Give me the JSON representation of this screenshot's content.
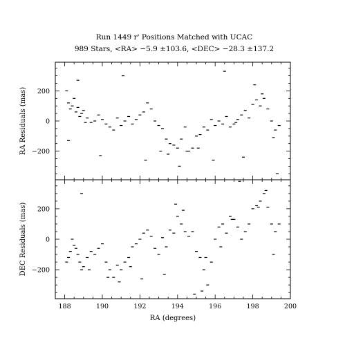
{
  "chart_data": {
    "type": "scatter",
    "title": "Run 1449 r' Positions Matched with UCAC",
    "subtitle": "989 Stars, <RA>  −5.9 ±103.6, <DEC> −28.3 ±137.2",
    "xlabel": "RA (degrees)",
    "xlim": [
      187.5,
      200.0
    ],
    "x_ticks": [
      "188",
      "190",
      "192",
      "194",
      "196",
      "198",
      "200"
    ],
    "grid": false,
    "panels": [
      {
        "ylabel": "RA Residuals (mas)",
        "ylim": [
          -390,
          390
        ],
        "y_ticks": [
          "−200",
          "0",
          "200"
        ],
        "series": [
          {
            "x": [
              188.1,
              188.2,
              188.3,
              188.4,
              188.5,
              188.6,
              188.7,
              188.8,
              188.9,
              189.0,
              189.2,
              189.4,
              189.6,
              189.8,
              190.0,
              190.2,
              190.4,
              190.6,
              190.8,
              191.0,
              191.2,
              191.4,
              191.6,
              191.8,
              192.0,
              192.2,
              192.4,
              192.6,
              192.8,
              193.0,
              193.2,
              193.4,
              193.6,
              193.8,
              194.0,
              194.2,
              194.4,
              194.6,
              194.8,
              195.0,
              195.2,
              195.4,
              195.6,
              195.8,
              196.0,
              196.2,
              196.4,
              196.6,
              196.8,
              197.0,
              197.2,
              197.4,
              197.6,
              197.8,
              198.0,
              198.2,
              198.4,
              198.6,
              198.8,
              199.0,
              199.2,
              199.4,
              188.2,
              188.7,
              189.1,
              189.9,
              191.1,
              192.3,
              193.1,
              193.5,
              194.1,
              194.5,
              195.1,
              195.9,
              196.5,
              197.1,
              197.5,
              198.1,
              198.5,
              199.1,
              199.3
            ],
            "y": [
              200,
              120,
              80,
              100,
              150,
              60,
              90,
              30,
              50,
              70,
              20,
              -10,
              0,
              40,
              10,
              -20,
              -40,
              -60,
              20,
              -30,
              0,
              30,
              -20,
              10,
              40,
              60,
              120,
              80,
              0,
              -30,
              -50,
              -120,
              -150,
              -160,
              -180,
              -120,
              -40,
              -200,
              -180,
              -100,
              -90,
              -40,
              -60,
              10,
              -30,
              0,
              -20,
              30,
              -40,
              -20,
              10,
              40,
              70,
              20,
              110,
              140,
              100,
              150,
              80,
              0,
              -60,
              -30,
              -130,
              270,
              -10,
              -230,
              300,
              -260,
              -200,
              -220,
              -300,
              -200,
              -180,
              -260,
              330,
              -10,
              -240,
              240,
              180,
              -110,
              -350
            ]
          }
        ]
      },
      {
        "ylabel": "DEC Residuals (mas)",
        "ylim": [
          -390,
          390
        ],
        "y_ticks": [
          "−200",
          "0",
          "200"
        ],
        "series": [
          {
            "x": [
              188.1,
              188.2,
              188.3,
              188.4,
              188.5,
              188.6,
              188.7,
              188.8,
              188.9,
              189.0,
              189.2,
              189.4,
              189.6,
              189.8,
              190.0,
              190.2,
              190.4,
              190.6,
              190.8,
              191.0,
              191.2,
              191.4,
              191.6,
              191.8,
              192.0,
              192.2,
              192.4,
              192.6,
              192.8,
              193.0,
              193.2,
              193.4,
              193.6,
              193.8,
              194.0,
              194.2,
              194.4,
              194.6,
              194.8,
              195.0,
              195.2,
              195.4,
              195.6,
              195.8,
              196.0,
              196.2,
              196.4,
              196.6,
              196.8,
              197.0,
              197.2,
              197.4,
              197.6,
              197.8,
              198.0,
              198.2,
              198.4,
              198.6,
              198.8,
              199.0,
              199.2,
              199.4,
              188.9,
              189.3,
              190.3,
              190.9,
              191.5,
              192.1,
              193.3,
              193.9,
              194.3,
              194.9,
              195.3,
              195.5,
              196.3,
              196.9,
              197.3,
              198.3,
              198.7,
              199.1
            ],
            "y": [
              -150,
              -120,
              -80,
              0,
              -40,
              -60,
              -100,
              -150,
              -200,
              -180,
              -120,
              -80,
              -100,
              -60,
              -30,
              -150,
              -200,
              -250,
              -170,
              -200,
              -150,
              -120,
              -50,
              -30,
              0,
              40,
              60,
              20,
              -60,
              -100,
              10,
              -50,
              60,
              40,
              150,
              100,
              50,
              20,
              50,
              -80,
              -120,
              -200,
              -300,
              -150,
              0,
              80,
              100,
              40,
              150,
              130,
              80,
              0,
              50,
              100,
              200,
              220,
              250,
              300,
              210,
              100,
              50,
              100,
              300,
              -200,
              -250,
              -280,
              -180,
              -260,
              -230,
              230,
              190,
              -360,
              -340,
              -120,
              -50,
              130,
              380,
              210,
              320,
              -100
            ]
          }
        ]
      }
    ]
  }
}
